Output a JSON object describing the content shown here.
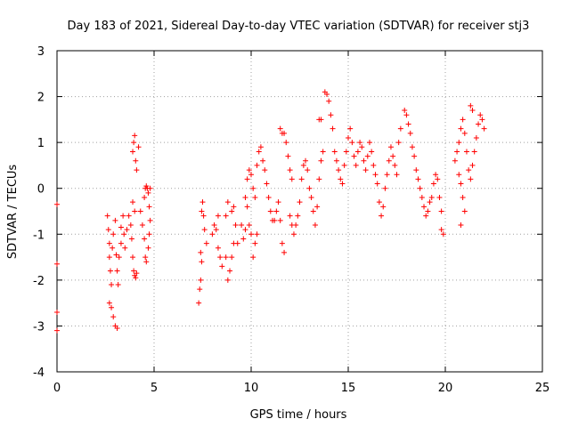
{
  "chart_data": {
    "type": "scatter",
    "title": "Day 183 of 2021, Sidereal Day-to-day VTEC variation (SDTVAR) for receiver stj3",
    "xlabel": "GPS time / hours",
    "ylabel": "SDTVAR / TECUs",
    "xlim": [
      0,
      25
    ],
    "ylim": [
      -4,
      3
    ],
    "xticks": [
      0,
      5,
      10,
      15,
      20,
      25
    ],
    "xtick_labels": [
      "0",
      "5",
      "10",
      "15",
      "20",
      "25"
    ],
    "yticks": [
      -4,
      -3,
      -2,
      -1,
      0,
      1,
      2,
      3
    ],
    "ytick_labels": [
      "-4",
      "-3",
      "-2",
      "-1",
      "0",
      "1",
      "2",
      "3"
    ],
    "grid": true,
    "marker": "+",
    "color": "#ff0000",
    "series": [
      {
        "name": "SDTVAR stj3",
        "points": [
          [
            0.0,
            -0.35
          ],
          [
            0.0,
            -1.65
          ],
          [
            0.0,
            -2.7
          ],
          [
            0.0,
            -3.1
          ],
          [
            2.6,
            -0.6
          ],
          [
            2.65,
            -0.9
          ],
          [
            2.7,
            -1.2
          ],
          [
            2.7,
            -1.5
          ],
          [
            2.75,
            -1.8
          ],
          [
            2.8,
            -2.1
          ],
          [
            2.7,
            -2.5
          ],
          [
            2.8,
            -2.6
          ],
          [
            2.9,
            -2.8
          ],
          [
            3.0,
            -3.0
          ],
          [
            3.1,
            -3.05
          ],
          [
            2.85,
            -1.3
          ],
          [
            2.9,
            -1.0
          ],
          [
            3.0,
            -0.7
          ],
          [
            3.05,
            -1.45
          ],
          [
            3.1,
            -1.8
          ],
          [
            3.15,
            -2.1
          ],
          [
            3.2,
            -1.5
          ],
          [
            3.3,
            -1.2
          ],
          [
            3.3,
            -0.85
          ],
          [
            3.4,
            -0.6
          ],
          [
            3.45,
            -1.0
          ],
          [
            3.5,
            -1.3
          ],
          [
            3.6,
            -0.9
          ],
          [
            3.7,
            -0.6
          ],
          [
            3.8,
            -0.8
          ],
          [
            3.85,
            -1.1
          ],
          [
            3.9,
            -1.5
          ],
          [
            3.95,
            -1.8
          ],
          [
            4.0,
            -1.9
          ],
          [
            4.05,
            -1.95
          ],
          [
            4.1,
            -1.85
          ],
          [
            3.9,
            -0.3
          ],
          [
            4.0,
            -0.5
          ],
          [
            3.9,
            0.8
          ],
          [
            3.95,
            1.0
          ],
          [
            4.0,
            1.15
          ],
          [
            4.05,
            0.6
          ],
          [
            4.1,
            0.4
          ],
          [
            4.2,
            0.9
          ],
          [
            4.3,
            -0.5
          ],
          [
            4.4,
            -0.8
          ],
          [
            4.5,
            -1.1
          ],
          [
            4.55,
            -1.5
          ],
          [
            4.6,
            -1.6
          ],
          [
            4.5,
            -0.2
          ],
          [
            4.55,
            0.0
          ],
          [
            4.6,
            0.05
          ],
          [
            4.7,
            -0.1
          ],
          [
            4.75,
            -0.4
          ],
          [
            4.8,
            -0.7
          ],
          [
            4.75,
            -1.0
          ],
          [
            4.7,
            -1.3
          ],
          [
            4.65,
            0.0
          ],
          [
            4.8,
            0.0
          ],
          [
            7.3,
            -2.5
          ],
          [
            7.35,
            -2.2
          ],
          [
            7.4,
            -2.0
          ],
          [
            7.45,
            -1.6
          ],
          [
            7.4,
            -1.4
          ],
          [
            7.45,
            -0.5
          ],
          [
            7.5,
            -0.3
          ],
          [
            7.55,
            -0.6
          ],
          [
            7.6,
            -0.9
          ],
          [
            7.7,
            -1.2
          ],
          [
            8.0,
            -1.0
          ],
          [
            8.1,
            -0.8
          ],
          [
            8.2,
            -0.9
          ],
          [
            8.3,
            -1.3
          ],
          [
            8.4,
            -1.5
          ],
          [
            8.5,
            -1.7
          ],
          [
            8.3,
            -0.6
          ],
          [
            8.7,
            -1.5
          ],
          [
            8.8,
            -2.0
          ],
          [
            8.9,
            -1.8
          ],
          [
            9.0,
            -1.5
          ],
          [
            9.1,
            -1.2
          ],
          [
            8.7,
            -0.6
          ],
          [
            8.8,
            -0.3
          ],
          [
            9.0,
            -0.5
          ],
          [
            9.2,
            -0.8
          ],
          [
            9.3,
            -1.2
          ],
          [
            9.1,
            -0.4
          ],
          [
            9.5,
            -0.8
          ],
          [
            9.6,
            -1.1
          ],
          [
            9.7,
            -0.9
          ],
          [
            9.7,
            -0.2
          ],
          [
            9.8,
            -0.4
          ],
          [
            9.9,
            -0.8
          ],
          [
            10.0,
            -1.0
          ],
          [
            10.1,
            -1.5
          ],
          [
            10.2,
            -1.2
          ],
          [
            10.3,
            -1.0
          ],
          [
            9.8,
            0.2
          ],
          [
            9.9,
            0.4
          ],
          [
            10.0,
            0.3
          ],
          [
            10.1,
            0.0
          ],
          [
            10.2,
            -0.2
          ],
          [
            10.3,
            0.5
          ],
          [
            10.4,
            0.8
          ],
          [
            10.5,
            0.9
          ],
          [
            10.6,
            0.6
          ],
          [
            10.7,
            0.4
          ],
          [
            10.8,
            0.1
          ],
          [
            10.9,
            -0.2
          ],
          [
            11.0,
            -0.5
          ],
          [
            11.1,
            -0.7
          ],
          [
            11.2,
            -0.7
          ],
          [
            11.3,
            -0.5
          ],
          [
            11.4,
            -0.3
          ],
          [
            11.5,
            -0.7
          ],
          [
            11.6,
            -1.2
          ],
          [
            11.7,
            -1.4
          ],
          [
            11.5,
            1.3
          ],
          [
            11.6,
            1.2
          ],
          [
            11.7,
            1.2
          ],
          [
            11.8,
            1.0
          ],
          [
            11.9,
            0.7
          ],
          [
            12.0,
            0.4
          ],
          [
            12.1,
            0.2
          ],
          [
            12.0,
            -0.6
          ],
          [
            12.1,
            -0.8
          ],
          [
            12.2,
            -1.0
          ],
          [
            12.3,
            -0.8
          ],
          [
            12.4,
            -0.6
          ],
          [
            12.5,
            -0.3
          ],
          [
            12.6,
            0.2
          ],
          [
            12.7,
            0.5
          ],
          [
            12.8,
            0.6
          ],
          [
            12.9,
            0.4
          ],
          [
            13.0,
            0.0
          ],
          [
            13.1,
            -0.2
          ],
          [
            13.2,
            -0.5
          ],
          [
            13.3,
            -0.8
          ],
          [
            13.4,
            -0.4
          ],
          [
            13.5,
            0.2
          ],
          [
            13.6,
            0.6
          ],
          [
            13.7,
            0.8
          ],
          [
            13.8,
            2.1
          ],
          [
            13.9,
            2.05
          ],
          [
            14.0,
            1.9
          ],
          [
            14.1,
            1.6
          ],
          [
            14.2,
            1.3
          ],
          [
            13.5,
            1.5
          ],
          [
            13.6,
            1.5
          ],
          [
            14.3,
            0.8
          ],
          [
            14.4,
            0.6
          ],
          [
            14.5,
            0.4
          ],
          [
            14.6,
            0.2
          ],
          [
            14.7,
            0.1
          ],
          [
            14.8,
            0.5
          ],
          [
            14.9,
            0.8
          ],
          [
            15.0,
            1.1
          ],
          [
            15.1,
            1.3
          ],
          [
            15.2,
            1.0
          ],
          [
            15.3,
            0.7
          ],
          [
            15.4,
            0.5
          ],
          [
            15.5,
            0.8
          ],
          [
            15.6,
            1.0
          ],
          [
            15.7,
            0.9
          ],
          [
            15.8,
            0.6
          ],
          [
            15.9,
            0.4
          ],
          [
            16.0,
            0.7
          ],
          [
            16.1,
            1.0
          ],
          [
            16.2,
            0.8
          ],
          [
            16.3,
            0.5
          ],
          [
            16.4,
            0.3
          ],
          [
            16.5,
            0.1
          ],
          [
            16.6,
            -0.3
          ],
          [
            16.7,
            -0.6
          ],
          [
            16.8,
            -0.4
          ],
          [
            16.9,
            0.0
          ],
          [
            17.0,
            0.3
          ],
          [
            17.1,
            0.6
          ],
          [
            17.2,
            0.9
          ],
          [
            17.3,
            0.7
          ],
          [
            17.4,
            0.5
          ],
          [
            17.5,
            0.3
          ],
          [
            17.6,
            1.0
          ],
          [
            17.7,
            1.3
          ],
          [
            17.9,
            1.7
          ],
          [
            18.0,
            1.6
          ],
          [
            18.1,
            1.4
          ],
          [
            18.2,
            1.2
          ],
          [
            18.3,
            0.9
          ],
          [
            18.4,
            0.7
          ],
          [
            18.5,
            0.4
          ],
          [
            18.6,
            0.2
          ],
          [
            18.7,
            0.0
          ],
          [
            18.8,
            -0.2
          ],
          [
            18.9,
            -0.4
          ],
          [
            19.0,
            -0.6
          ],
          [
            19.1,
            -0.5
          ],
          [
            19.2,
            -0.3
          ],
          [
            19.3,
            -0.2
          ],
          [
            19.4,
            0.1
          ],
          [
            19.5,
            0.3
          ],
          [
            19.6,
            0.2
          ],
          [
            19.7,
            -0.2
          ],
          [
            19.8,
            -0.5
          ],
          [
            19.8,
            -0.9
          ],
          [
            19.9,
            -1.0
          ],
          [
            20.5,
            0.6
          ],
          [
            20.6,
            0.8
          ],
          [
            20.7,
            1.0
          ],
          [
            20.8,
            1.3
          ],
          [
            20.9,
            1.5
          ],
          [
            21.0,
            1.2
          ],
          [
            21.1,
            0.8
          ],
          [
            21.2,
            0.4
          ],
          [
            21.3,
            0.2
          ],
          [
            21.4,
            0.5
          ],
          [
            21.5,
            0.8
          ],
          [
            21.6,
            1.1
          ],
          [
            21.7,
            1.4
          ],
          [
            21.8,
            1.6
          ],
          [
            21.9,
            1.5
          ],
          [
            22.0,
            1.3
          ],
          [
            20.7,
            0.3
          ],
          [
            20.8,
            0.1
          ],
          [
            20.9,
            -0.2
          ],
          [
            21.0,
            -0.5
          ],
          [
            20.8,
            -0.8
          ],
          [
            21.3,
            1.8
          ],
          [
            21.4,
            1.7
          ]
        ]
      }
    ]
  }
}
